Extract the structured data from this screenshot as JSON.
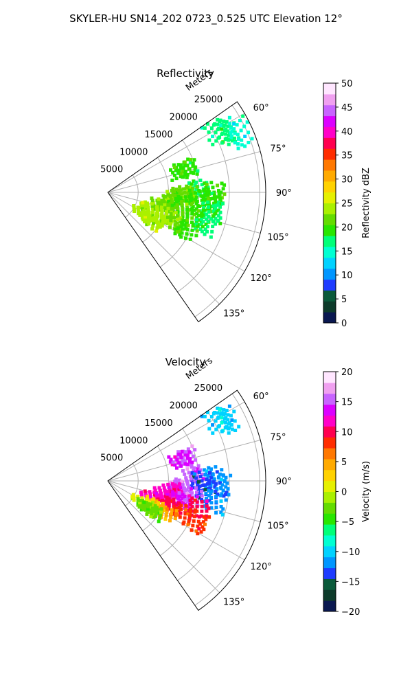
{
  "figure_title": "SKYLER-HU  SN14_202  0723_0.525 UTC Elevation 12°",
  "chart_data": [
    {
      "type": "polar-sector",
      "title": "Reflectivity",
      "radial_label": "Meters",
      "radial_ticks": [
        "5000",
        "10000",
        "15000",
        "20000",
        "25000"
      ],
      "r_max": 26000,
      "theta_range_deg": [
        55,
        145
      ],
      "angle_ticks": [
        "60°",
        "75°",
        "90°",
        "105°",
        "120°",
        "135°"
      ],
      "grid": true,
      "colorbar": {
        "label": "Reflectivity dBZ",
        "ticks": [
          "0",
          "5",
          "10",
          "15",
          "20",
          "25",
          "30",
          "35",
          "40",
          "45",
          "50"
        ],
        "range": [
          0,
          50
        ],
        "colors": [
          "#0a1850",
          "#0d3b2a",
          "#0a5a3a",
          "#1e3cff",
          "#0096ff",
          "#00d2ff",
          "#00ffd2",
          "#00ff78",
          "#28e600",
          "#64dc00",
          "#aaf000",
          "#e6f000",
          "#ffd200",
          "#ffaa00",
          "#ff7800",
          "#ff2d00",
          "#ff0050",
          "#ff00c8",
          "#dc00ff",
          "#c864ff",
          "#f0a0f0",
          "#ffe6ff"
        ]
      },
      "echoes": [
        {
          "az": 61,
          "range": 20500,
          "value": 17
        },
        {
          "az": 63,
          "range": 22000,
          "value": 16
        },
        {
          "az": 66,
          "range": 24000,
          "value": 15
        },
        {
          "az": 73,
          "range": 13500,
          "value": 19
        },
        {
          "az": 74,
          "range": 12500,
          "value": 20
        },
        {
          "az": 88,
          "range": 15000,
          "value": 18
        },
        {
          "az": 90,
          "range": 17500,
          "value": 20
        },
        {
          "az": 91,
          "range": 13000,
          "value": 22
        },
        {
          "az": 92,
          "range": 11500,
          "value": 21
        },
        {
          "az": 94,
          "range": 15000,
          "value": 20
        },
        {
          "az": 96,
          "range": 17000,
          "value": 19
        },
        {
          "az": 98,
          "range": 10500,
          "value": 22
        },
        {
          "az": 99,
          "range": 13000,
          "value": 20
        },
        {
          "az": 101,
          "range": 17500,
          "value": 18
        },
        {
          "az": 103,
          "range": 9000,
          "value": 22
        },
        {
          "az": 104,
          "range": 12000,
          "value": 21
        },
        {
          "az": 106,
          "range": 14500,
          "value": 20
        },
        {
          "az": 108,
          "range": 17000,
          "value": 18
        },
        {
          "az": 110,
          "range": 7500,
          "value": 24
        },
        {
          "az": 112,
          "range": 10000,
          "value": 23
        },
        {
          "az": 114,
          "range": 12500,
          "value": 22
        },
        {
          "az": 116,
          "range": 14500,
          "value": 20
        },
        {
          "az": 118,
          "range": 9000,
          "value": 23
        },
        {
          "az": 121,
          "range": 6500,
          "value": 23
        },
        {
          "az": 124,
          "range": 8500,
          "value": 24
        }
      ]
    },
    {
      "type": "polar-sector",
      "title": "Velocity",
      "radial_label": "Meters",
      "radial_ticks": [
        "5000",
        "10000",
        "15000",
        "20000",
        "25000"
      ],
      "r_max": 26000,
      "theta_range_deg": [
        55,
        145
      ],
      "angle_ticks": [
        "60°",
        "75°",
        "90°",
        "105°",
        "120°",
        "135°"
      ],
      "grid": true,
      "colorbar": {
        "label": "Velocity (m/s)",
        "ticks": [
          "−20",
          "−15",
          "−10",
          "−5",
          "0",
          "5",
          "10",
          "15",
          "20"
        ],
        "range": [
          -20,
          20
        ],
        "colors": [
          "#0a1850",
          "#0d3b2a",
          "#0a5a3a",
          "#1e3cff",
          "#0096ff",
          "#00d2ff",
          "#00ffd2",
          "#00ff78",
          "#28e600",
          "#64dc00",
          "#aaf000",
          "#e6f000",
          "#ffd200",
          "#ffaa00",
          "#ff7800",
          "#ff2d00",
          "#ff0050",
          "#ff00c8",
          "#dc00ff",
          "#c864ff",
          "#f0a0f0",
          "#ffe6ff"
        ]
      },
      "echoes": [
        {
          "az": 61,
          "range": 20500,
          "value": -10
        },
        {
          "az": 63,
          "range": 22000,
          "value": -10
        },
        {
          "az": 73,
          "range": 13500,
          "value": 15
        },
        {
          "az": 74,
          "range": 12500,
          "value": 14
        },
        {
          "az": 86,
          "range": 14000,
          "value": 15
        },
        {
          "az": 88,
          "range": 17500,
          "value": -12
        },
        {
          "az": 90,
          "range": 15500,
          "value": -13
        },
        {
          "az": 92,
          "range": 18500,
          "value": -12
        },
        {
          "az": 94,
          "range": 12000,
          "value": 16
        },
        {
          "az": 96,
          "range": 16500,
          "value": -14
        },
        {
          "az": 98,
          "range": 10500,
          "value": 12
        },
        {
          "az": 100,
          "range": 14000,
          "value": 15
        },
        {
          "az": 101,
          "range": 18000,
          "value": -12
        },
        {
          "az": 103,
          "range": 9500,
          "value": 11
        },
        {
          "az": 105,
          "range": 12500,
          "value": 14
        },
        {
          "az": 107,
          "range": 15500,
          "value": 10
        },
        {
          "az": 109,
          "range": 7500,
          "value": 11
        },
        {
          "az": 111,
          "range": 10500,
          "value": 10
        },
        {
          "az": 113,
          "range": 13500,
          "value": 9
        },
        {
          "az": 115,
          "range": 16000,
          "value": 8
        },
        {
          "az": 117,
          "range": 8500,
          "value": 3
        },
        {
          "az": 119,
          "range": 11000,
          "value": 5
        },
        {
          "az": 121,
          "range": 6500,
          "value": 0
        },
        {
          "az": 123,
          "range": 9000,
          "value": -2
        },
        {
          "az": 125,
          "range": 7500,
          "value": -3
        }
      ]
    }
  ]
}
